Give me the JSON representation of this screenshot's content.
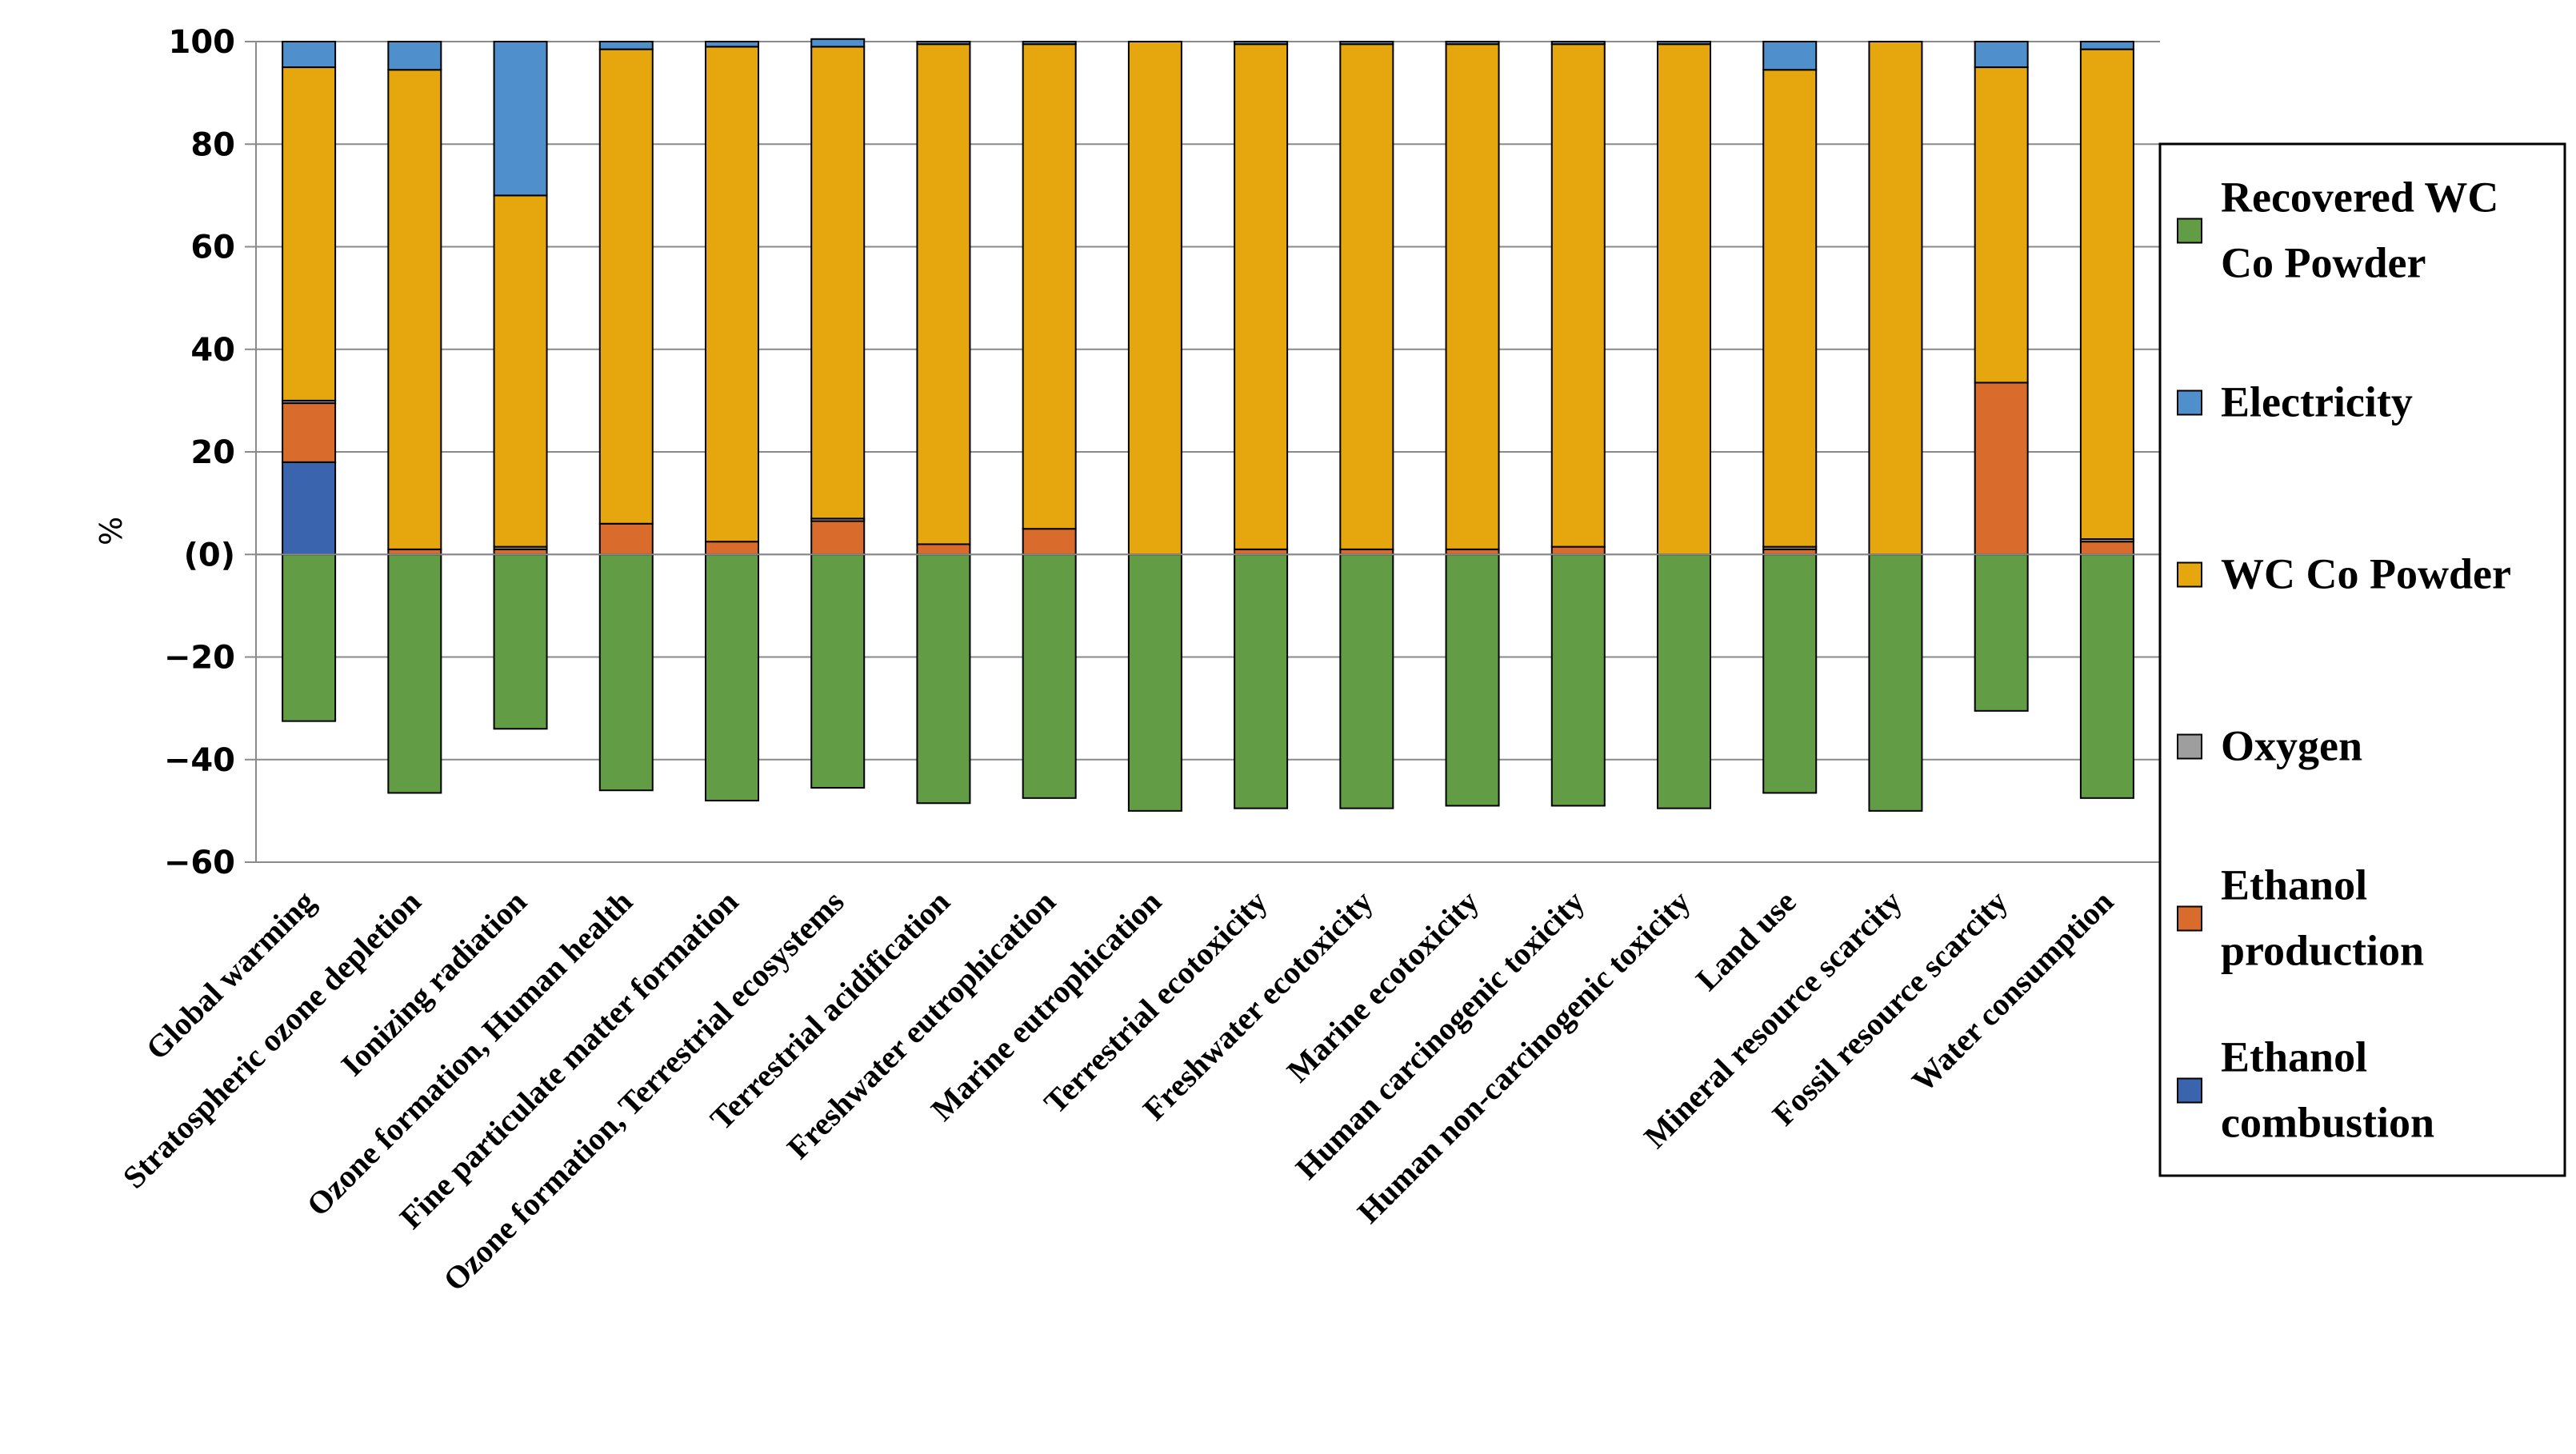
{
  "chart_data": {
    "type": "bar",
    "stacked": true,
    "title": "",
    "xlabel": "",
    "ylabel": "%",
    "ylim": [
      -60,
      100
    ],
    "ytick_values": [
      100,
      80,
      60,
      40,
      20,
      0,
      -20,
      -40,
      -60
    ],
    "ytick_labels": [
      "100",
      "80",
      "60",
      "40",
      "20",
      "(0)",
      "−20",
      "−40",
      "−60"
    ],
    "grid": true,
    "legend_position": "right",
    "categories": [
      "Global warming",
      "Stratospheric ozone depletion",
      "Ionizing radiation",
      "Ozone formation, Human health",
      "Fine particulate matter formation",
      "Ozone formation, Terrestrial ecosystems",
      "Terrestrial acidification",
      "Freshwater eutrophication",
      "Marine eutrophication",
      "Terrestrial ecotoxicity",
      "Freshwater ecotoxicity",
      "Marine ecotoxicity",
      "Human carcinogenic toxicity",
      "Human non-carcinogenic toxicity",
      "Land use",
      "Mineral resource scarcity",
      "Fossil resource scarcity",
      "Water consumption"
    ],
    "series": [
      {
        "name": "Recovered WC Co Powder",
        "color": "#629C44",
        "values": [
          -32.5,
          -46.5,
          -34,
          -46,
          -48,
          -45.5,
          -48.5,
          -47.5,
          -50,
          -49.5,
          -49.5,
          -49,
          -49,
          -49.5,
          -46.5,
          -50,
          -30.5,
          -47.5
        ]
      },
      {
        "name": "Electricity",
        "color": "#4F8FCB",
        "values": [
          5,
          5.5,
          30,
          1.5,
          1,
          1.5,
          0.5,
          0.5,
          0,
          0.5,
          0.5,
          0.5,
          0.5,
          0.5,
          5.5,
          0,
          5,
          1.5
        ]
      },
      {
        "name": "WC Co Powder",
        "color": "#E5A70D",
        "values": [
          65,
          93.5,
          68.5,
          92.5,
          96.5,
          92,
          97.5,
          94.5,
          100,
          98.5,
          98.5,
          98.5,
          98,
          99.5,
          93,
          100,
          61.5,
          95.5
        ]
      },
      {
        "name": "Oxygen",
        "color": "#9E9E9E",
        "values": [
          0.5,
          0,
          0.5,
          0,
          0,
          0.5,
          0,
          0,
          0,
          0,
          0,
          0,
          0,
          0,
          0.5,
          0,
          0,
          0.5
        ]
      },
      {
        "name": "Ethanol production",
        "color": "#D96C2C",
        "values": [
          11.5,
          1,
          1,
          6,
          2.5,
          6.5,
          2,
          5,
          0,
          1,
          1,
          1,
          1.5,
          0,
          1,
          0,
          33.5,
          2.5
        ]
      },
      {
        "name": "Ethanol combustion",
        "color": "#3A64AE",
        "values": [
          18,
          0,
          0,
          0,
          0,
          0,
          0,
          0,
          0,
          0,
          0,
          0,
          0,
          0,
          0,
          0,
          0,
          0
        ]
      }
    ],
    "stack_order_positive_bottom_to_top": [
      "Ethanol combustion",
      "Ethanol production",
      "Oxygen",
      "WC Co Powder",
      "Electricity"
    ],
    "legend_entries": [
      {
        "name": "Recovered WC Co Powder",
        "lines": [
          "Recovered WC",
          "Co Powder"
        ],
        "color": "#629C44"
      },
      {
        "name": "Electricity",
        "lines": [
          "Electricity"
        ],
        "color": "#4F8FCB"
      },
      {
        "name": "WC Co Powder",
        "lines": [
          "WC Co Powder"
        ],
        "color": "#E5A70D"
      },
      {
        "name": "Oxygen",
        "lines": [
          "Oxygen"
        ],
        "color": "#9E9E9E"
      },
      {
        "name": "Ethanol production",
        "lines": [
          "Ethanol",
          "production"
        ],
        "color": "#D96C2C"
      },
      {
        "name": "Ethanol combustion",
        "lines": [
          "Ethanol",
          "combustion"
        ],
        "color": "#3A64AE"
      }
    ]
  }
}
